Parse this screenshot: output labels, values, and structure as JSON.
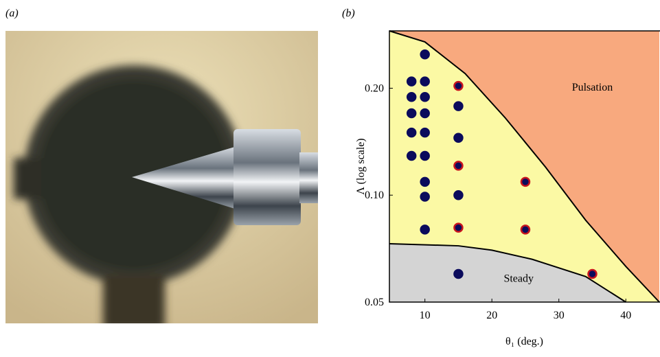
{
  "panel_labels": [
    "(a)",
    "(b)"
  ],
  "chart_data": {
    "type": "scatter",
    "xlabel": "θ₁ (deg.)",
    "ylabel": "Λ (log scale)",
    "xlim": [
      4.7,
      45
    ],
    "xticks": [
      10,
      20,
      30,
      40
    ],
    "ylim": [
      0.05,
      0.29
    ],
    "yscale": "log",
    "yticks": [
      0.05,
      {
        "value": 0.1,
        "label": "0.10"
      },
      {
        "value": 0.2,
        "label": "0.20"
      }
    ],
    "background": "#fbf9a4",
    "regions": [
      {
        "label": "Pulsation",
        "color": "#f8a97e",
        "side": "above",
        "x": [
          4.7,
          10,
          16,
          22,
          28,
          34,
          40,
          45
        ],
        "y": [
          0.29,
          0.27,
          0.22,
          0.165,
          0.12,
          0.085,
          0.063,
          0.05
        ],
        "label_x": 35,
        "label_y": 0.2
      },
      {
        "label": "Steady",
        "color": "#d4d4d4",
        "side": "below",
        "x": [
          4.7,
          15,
          20,
          26,
          34,
          40
        ],
        "y": [
          0.073,
          0.072,
          0.07,
          0.066,
          0.059,
          0.05
        ],
        "label_x": 24,
        "label_y": 0.058
      }
    ],
    "series": [
      {
        "color": "#0b0b5c",
        "edgecolor": "#0b0b5c",
        "x": [
          8,
          8,
          8,
          8,
          8,
          10,
          10,
          10,
          10,
          10,
          10,
          10,
          10,
          10,
          15,
          15,
          15,
          15
        ],
        "values": [
          0.209,
          0.189,
          0.17,
          0.15,
          0.129,
          0.249,
          0.209,
          0.189,
          0.17,
          0.15,
          0.129,
          0.109,
          0.099,
          0.08,
          0.178,
          0.145,
          0.1,
          0.06
        ]
      },
      {
        "color": "#0b0b5c",
        "edgecolor": "#c8141e",
        "x": [
          15,
          15,
          15,
          25,
          25,
          35
        ],
        "values": [
          0.203,
          0.121,
          0.081,
          0.109,
          0.08,
          0.06
        ]
      }
    ]
  }
}
